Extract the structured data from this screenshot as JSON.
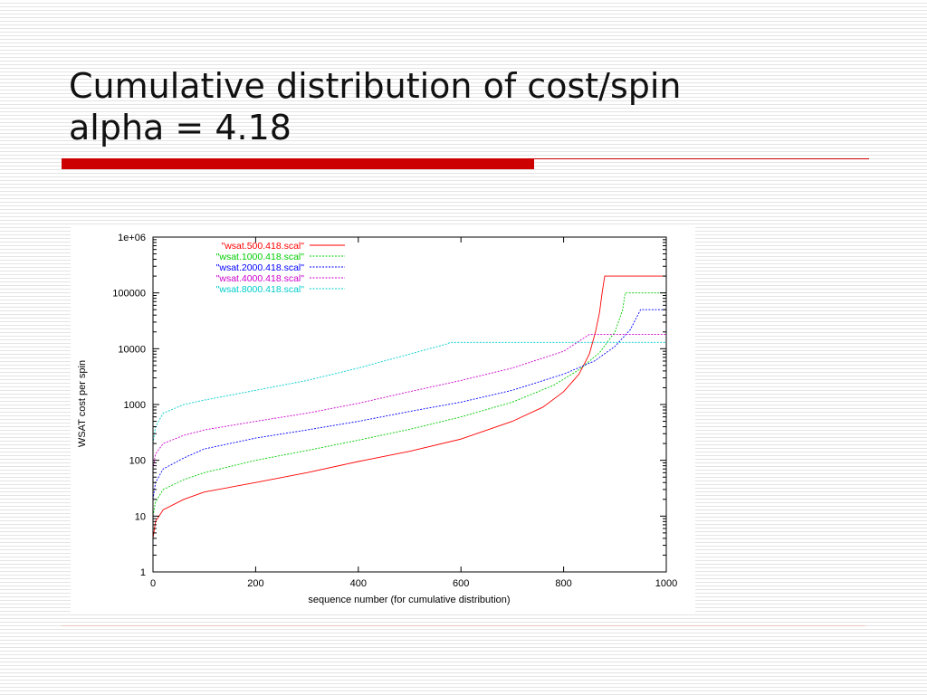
{
  "slide": {
    "title_line1": "Cumulative distribution of cost/spin",
    "title_line2": "alpha = 4.18"
  },
  "chart_data": {
    "type": "line",
    "title": "",
    "xlabel": "sequence number (for cumulative distribution)",
    "ylabel": "WSAT cost per spin",
    "xlim": [
      0,
      1000
    ],
    "ylim": [
      1,
      1000000
    ],
    "yscale": "log",
    "x_ticks": [
      "0",
      "200",
      "400",
      "600",
      "800",
      "1000"
    ],
    "y_ticks": [
      "1",
      "10",
      "100",
      "1000",
      "10000",
      "100000",
      "1e+06"
    ],
    "legend_position": "top-left",
    "grid": false,
    "series": [
      {
        "name": "\"wsat.500.418.scal\"",
        "color": "#ff0000",
        "x": [
          0,
          5,
          20,
          60,
          100,
          200,
          300,
          400,
          500,
          600,
          700,
          760,
          800,
          830,
          850,
          862,
          870,
          875,
          880,
          1000
        ],
        "y": [
          4,
          8,
          13,
          20,
          27,
          40,
          60,
          95,
          145,
          240,
          500,
          900,
          1700,
          3500,
          8000,
          20000,
          45000,
          100000,
          200000,
          200000
        ]
      },
      {
        "name": "\"wsat.1000.418.scal\"",
        "color": "#00cc00",
        "x": [
          0,
          5,
          20,
          60,
          100,
          200,
          300,
          400,
          500,
          600,
          700,
          780,
          830,
          870,
          900,
          915,
          920,
          1000
        ],
        "y": [
          10,
          18,
          30,
          45,
          60,
          100,
          150,
          230,
          360,
          600,
          1100,
          2200,
          4200,
          8500,
          20000,
          50000,
          100000,
          100000
        ]
      },
      {
        "name": "\"wsat.2000.418.scal\"",
        "color": "#0000ff",
        "x": [
          0,
          5,
          20,
          60,
          100,
          200,
          300,
          400,
          500,
          600,
          700,
          800,
          860,
          900,
          930,
          950,
          1000
        ],
        "y": [
          20,
          40,
          70,
          110,
          160,
          250,
          350,
          500,
          750,
          1100,
          1800,
          3500,
          6000,
          11000,
          22000,
          50000,
          50000
        ]
      },
      {
        "name": "\"wsat.4000.418.scal\"",
        "color": "#cc00cc",
        "x": [
          0,
          5,
          20,
          60,
          100,
          200,
          300,
          400,
          500,
          600,
          700,
          800,
          850,
          1000
        ],
        "y": [
          70,
          130,
          200,
          280,
          350,
          500,
          700,
          1050,
          1700,
          2700,
          4500,
          9000,
          18000,
          18000
        ]
      },
      {
        "name": "\"wsat.8000.418.scal\"",
        "color": "#00cccc",
        "x": [
          0,
          5,
          20,
          60,
          100,
          200,
          300,
          400,
          500,
          570,
          580,
          1000
        ],
        "y": [
          200,
          400,
          700,
          1000,
          1200,
          1800,
          2700,
          4500,
          8000,
          12000,
          13000,
          13000
        ]
      }
    ]
  }
}
